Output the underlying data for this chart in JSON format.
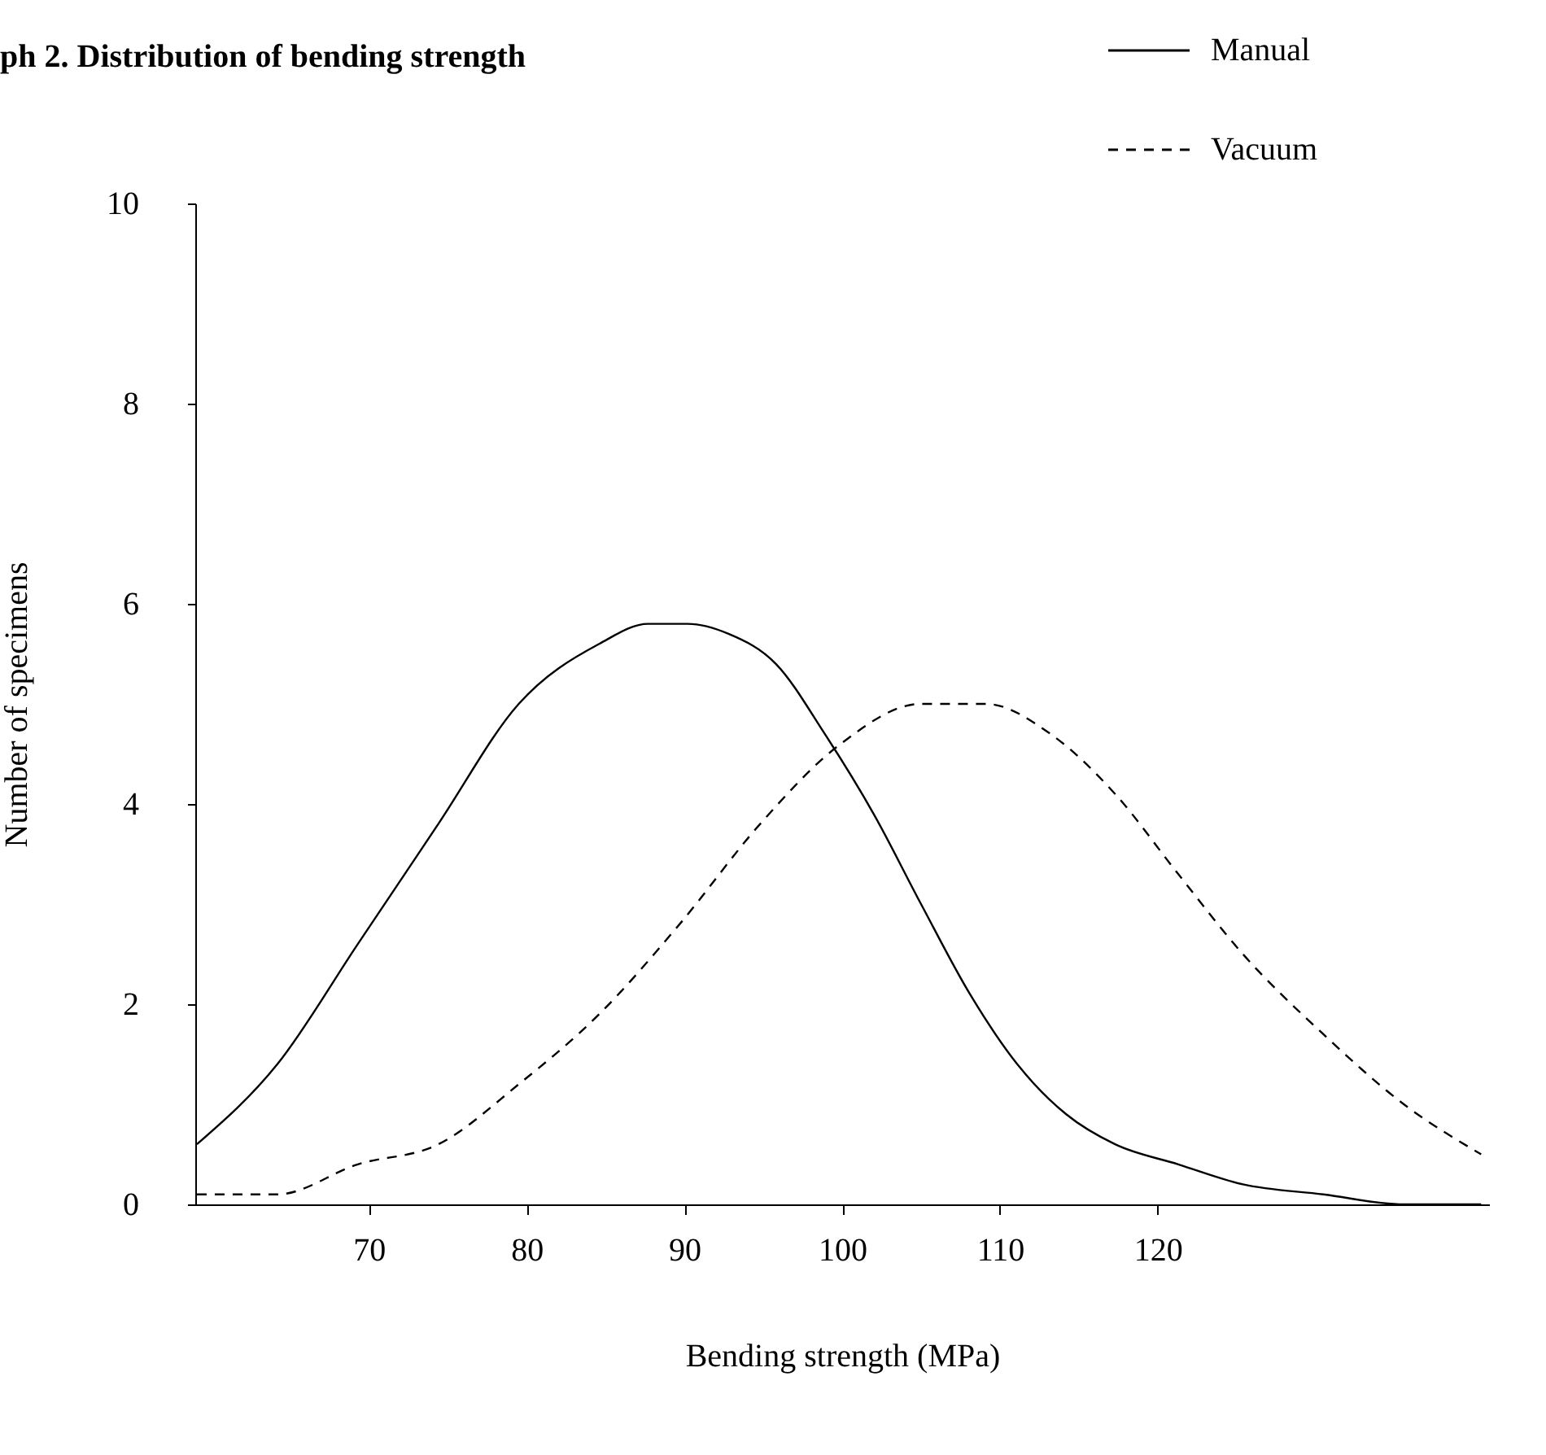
{
  "chart_data": {
    "type": "line",
    "title": "ph 2. Distribution of bending strength",
    "xlabel": "Bending strength (MPa)",
    "ylabel": "Number of specimens",
    "xlim": [
      59,
      141
    ],
    "xticks": [
      70,
      80,
      90,
      100,
      110,
      120
    ],
    "ylim": [
      0,
      10
    ],
    "yticks": [
      0,
      2,
      4,
      6,
      8,
      10
    ],
    "grid": false,
    "legend": "top right",
    "marker": "none",
    "series": [
      {
        "name": "Manual",
        "color": "#000000",
        "line_style": "solid",
        "x": [
          59.1,
          64.2,
          69.3,
          74.4,
          79.5,
          84.6,
          87.7,
          90.2,
          92.8,
          95.8,
          98.9,
          102.0,
          105.0,
          108.1,
          111.1,
          114.2,
          117.3,
          121.3,
          125.4,
          130.5,
          135.6,
          140.5
        ],
        "values": [
          0.6,
          1.4,
          2.6,
          3.8,
          5.0,
          5.6,
          5.8,
          5.8,
          5.7,
          5.4,
          4.7,
          3.9,
          3.0,
          2.1,
          1.4,
          0.9,
          0.6,
          0.4,
          0.2,
          0.1,
          0.0,
          0.0
        ]
      },
      {
        "name": "Vacuum",
        "color": "#000000",
        "line_style": "dashed",
        "x": [
          59.1,
          64.2,
          69.3,
          74.4,
          79.5,
          84.6,
          89.7,
          94.8,
          99.9,
          105.0,
          109.1,
          113.2,
          117.3,
          121.3,
          125.4,
          130.5,
          135.6,
          140.5
        ],
        "values": [
          0.1,
          0.1,
          0.4,
          0.6,
          1.2,
          1.9,
          2.8,
          3.8,
          4.6,
          5.0,
          5.0,
          4.7,
          4.1,
          3.3,
          2.5,
          1.7,
          1.0,
          0.5
        ]
      }
    ]
  }
}
